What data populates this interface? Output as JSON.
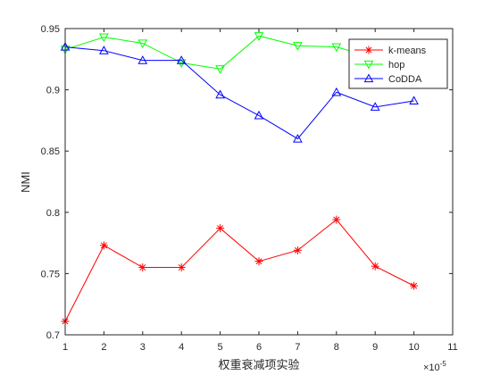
{
  "chart_data": {
    "type": "line",
    "xlabel": "权重衰减项实验",
    "ylabel": "NMI",
    "x_exponent_label": "×10",
    "x_exponent": "-5",
    "xlim": [
      1,
      11
    ],
    "ylim": [
      0.7,
      0.95
    ],
    "xticks": [
      "1",
      "2",
      "3",
      "4",
      "5",
      "6",
      "7",
      "8",
      "9",
      "10",
      "11"
    ],
    "yticks": [
      "0.7",
      "0.75",
      "0.8",
      "0.85",
      "0.9",
      "0.95"
    ],
    "x": [
      1,
      2,
      3,
      4,
      5,
      6,
      7,
      8,
      9,
      10
    ],
    "grid": false,
    "legend_position": "top-right",
    "series": [
      {
        "name": "k-means",
        "color": "#ff0000",
        "marker": "asterisk",
        "values": [
          0.711,
          0.773,
          0.755,
          0.755,
          0.787,
          0.76,
          0.769,
          0.794,
          0.756,
          0.74
        ]
      },
      {
        "name": "hop",
        "color": "#00ff00",
        "marker": "triangle-down",
        "values": [
          0.933,
          0.943,
          0.938,
          0.922,
          0.917,
          0.944,
          0.936,
          0.935,
          0.926,
          0.931
        ]
      },
      {
        "name": "CoDDA",
        "color": "#0000ff",
        "marker": "triangle-up",
        "values": [
          0.935,
          0.932,
          0.924,
          0.924,
          0.896,
          0.879,
          0.86,
          0.898,
          0.886,
          0.891
        ]
      }
    ]
  }
}
